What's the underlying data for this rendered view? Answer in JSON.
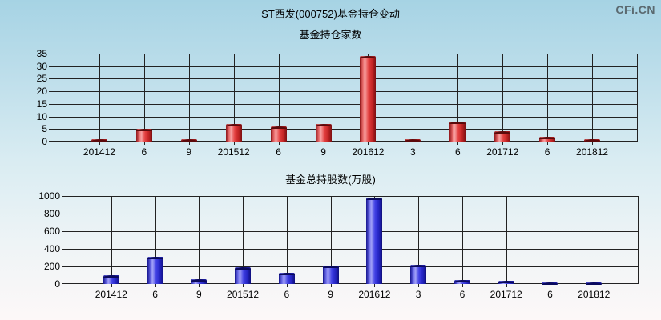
{
  "title": "ST西发(000752)基金持仓变动",
  "watermark": {
    "text": "CFi.CN",
    "color": "#5b6a70"
  },
  "colors": {
    "red_bar": "#cc2222",
    "blue_bar": "#3333cc",
    "gridline": "#222222",
    "background_top": "#a6d3e4",
    "background_bottom": "#fdf8f8"
  },
  "chart_data": [
    {
      "type": "bar",
      "title": "基金持仓家数",
      "categories": [
        "201412",
        "6",
        "9",
        "201512",
        "6",
        "9",
        "201612",
        "3",
        "6",
        "201712",
        "6",
        "201812"
      ],
      "values": [
        1,
        5,
        1,
        7,
        6,
        7,
        34,
        1,
        8,
        4,
        2,
        1
      ],
      "xlabel": "",
      "ylabel": "",
      "ylim": [
        0,
        35
      ],
      "ytick_step": 5,
      "grid": true,
      "legend_position": "none",
      "bar_color": "red"
    },
    {
      "type": "bar",
      "title": "基金总持股数(万股)",
      "categories": [
        "201412",
        "6",
        "9",
        "201512",
        "6",
        "9",
        "201612",
        "3",
        "6",
        "201712",
        "6",
        "201812"
      ],
      "values": [
        100,
        305,
        55,
        195,
        130,
        205,
        980,
        220,
        50,
        40,
        20,
        15
      ],
      "xlabel": "",
      "ylabel": "",
      "ylim": [
        0,
        1000
      ],
      "ytick_step": 200,
      "grid": true,
      "legend_position": "none",
      "bar_color": "blue"
    }
  ]
}
